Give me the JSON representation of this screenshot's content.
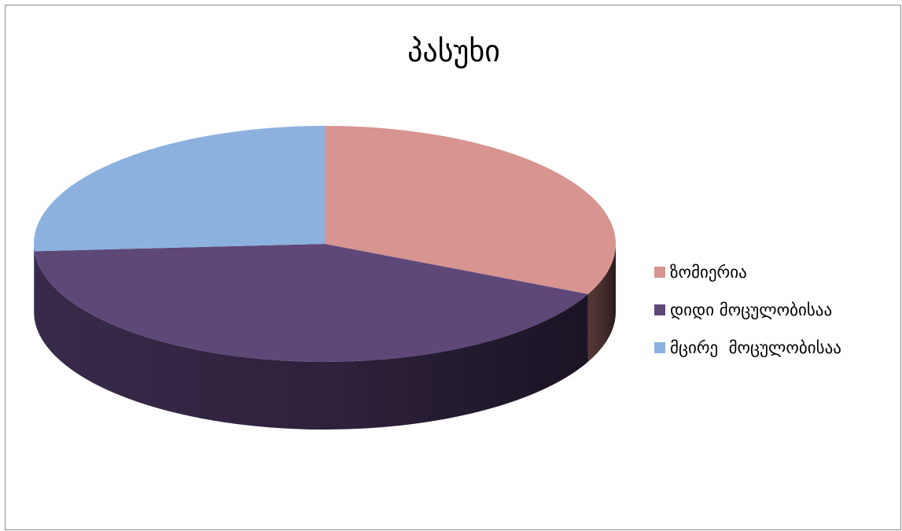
{
  "chart_data": {
    "type": "pie",
    "title": "პასუხი",
    "three_d": true,
    "legend_position": "right",
    "categories": [
      "ზომიერია",
      "დიდი მოცულობისაა",
      "მცირე  მოცულობისაა"
    ],
    "values": [
      32,
      42,
      26
    ],
    "colors": [
      "#d79491",
      "#5e4878",
      "#8db1df"
    ],
    "side_colors": [
      "#5a3b39",
      "#3c2c4f",
      "#56779d"
    ]
  }
}
